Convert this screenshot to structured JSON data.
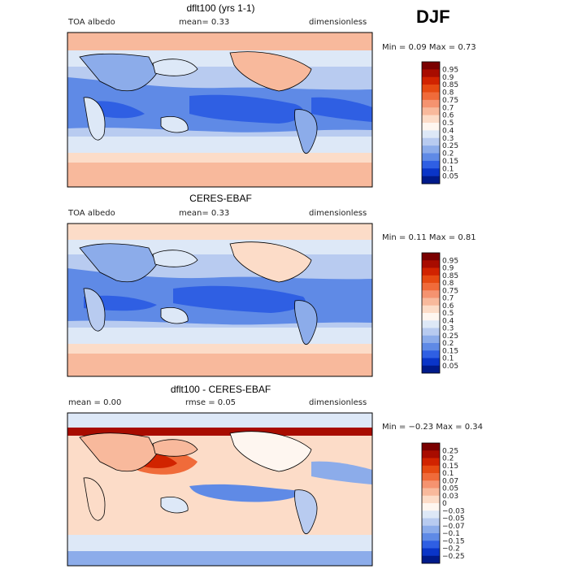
{
  "season": "DJF",
  "panels": [
    {
      "title": "dflt100 (yrs 1-1)",
      "left": "TOA albedo",
      "middle": "mean=    0.33",
      "right": "dimensionless",
      "min_max": "Min =    0.09  Max =    0.73",
      "colorbar": {
        "labels": [
          "0.95",
          "0.9",
          "0.85",
          "0.8",
          "0.75",
          "0.7",
          "0.6",
          "0.5",
          "0.4",
          "0.3",
          "0.25",
          "0.2",
          "0.15",
          "0.1",
          "0.05"
        ],
        "colors": [
          "#7a0000",
          "#a80c00",
          "#d12300",
          "#e64a12",
          "#f06b3a",
          "#f59370",
          "#f8b99c",
          "#fcdcc8",
          "#fef6f0",
          "#dde8f7",
          "#b8cbf0",
          "#8cacea",
          "#5f8ae6",
          "#2f5fe3",
          "#0a35c8",
          "#001a8a"
        ]
      }
    },
    {
      "title": "CERES-EBAF",
      "left": "TOA albedo",
      "middle": "mean=    0.33",
      "right": "dimensionless",
      "min_max": "Min =    0.11  Max =    0.81",
      "colorbar": {
        "labels": [
          "0.95",
          "0.9",
          "0.85",
          "0.8",
          "0.75",
          "0.7",
          "0.6",
          "0.5",
          "0.4",
          "0.3",
          "0.25",
          "0.2",
          "0.15",
          "0.1",
          "0.05"
        ],
        "colors": [
          "#7a0000",
          "#a80c00",
          "#d12300",
          "#e64a12",
          "#f06b3a",
          "#f59370",
          "#f8b99c",
          "#fcdcc8",
          "#fef6f0",
          "#dde8f7",
          "#b8cbf0",
          "#8cacea",
          "#5f8ae6",
          "#2f5fe3",
          "#0a35c8",
          "#001a8a"
        ]
      }
    },
    {
      "title": "dflt100 - CERES-EBAF",
      "left": "mean =    0.00",
      "middle": "rmse =    0.05",
      "right": "dimensionless",
      "min_max": "Min =  −0.23  Max =    0.34",
      "colorbar": {
        "labels": [
          "0.25",
          "0.2",
          "0.15",
          "0.1",
          "0.07",
          "0.05",
          "0.03",
          "0",
          "−0.03",
          "−0.05",
          "−0.07",
          "−0.1",
          "−0.15",
          "−0.2",
          "−0.25"
        ],
        "colors": [
          "#7a0000",
          "#a80c00",
          "#d12300",
          "#e64a12",
          "#f06b3a",
          "#f59370",
          "#f8b99c",
          "#fcdcc8",
          "#fef6f0",
          "#dde8f7",
          "#b8cbf0",
          "#8cacea",
          "#5f8ae6",
          "#2f5fe3",
          "#0a35c8",
          "#001a8a"
        ]
      }
    }
  ],
  "chart_data": [
    {
      "type": "heatmap",
      "title": "dflt100 (yrs 1-1)",
      "variable": "TOA albedo",
      "units": "dimensionless",
      "mean": 0.33,
      "min": 0.09,
      "max": 0.73,
      "levels": [
        0.05,
        0.1,
        0.15,
        0.2,
        0.25,
        0.3,
        0.4,
        0.5,
        0.6,
        0.7,
        0.75,
        0.8,
        0.85,
        0.9,
        0.95
      ],
      "colorscale": "blue-to-red"
    },
    {
      "type": "heatmap",
      "title": "CERES-EBAF",
      "variable": "TOA albedo",
      "units": "dimensionless",
      "mean": 0.33,
      "min": 0.11,
      "max": 0.81,
      "levels": [
        0.05,
        0.1,
        0.15,
        0.2,
        0.25,
        0.3,
        0.4,
        0.5,
        0.6,
        0.7,
        0.75,
        0.8,
        0.85,
        0.9,
        0.95
      ],
      "colorscale": "blue-to-red"
    },
    {
      "type": "heatmap",
      "title": "dflt100 - CERES-EBAF",
      "units": "dimensionless",
      "mean": 0.0,
      "rmse": 0.05,
      "min": -0.23,
      "max": 0.34,
      "levels": [
        -0.25,
        -0.2,
        -0.15,
        -0.1,
        -0.07,
        -0.05,
        -0.03,
        0,
        0.03,
        0.05,
        0.07,
        0.1,
        0.15,
        0.2,
        0.25
      ],
      "colorscale": "blue-white-red"
    }
  ]
}
